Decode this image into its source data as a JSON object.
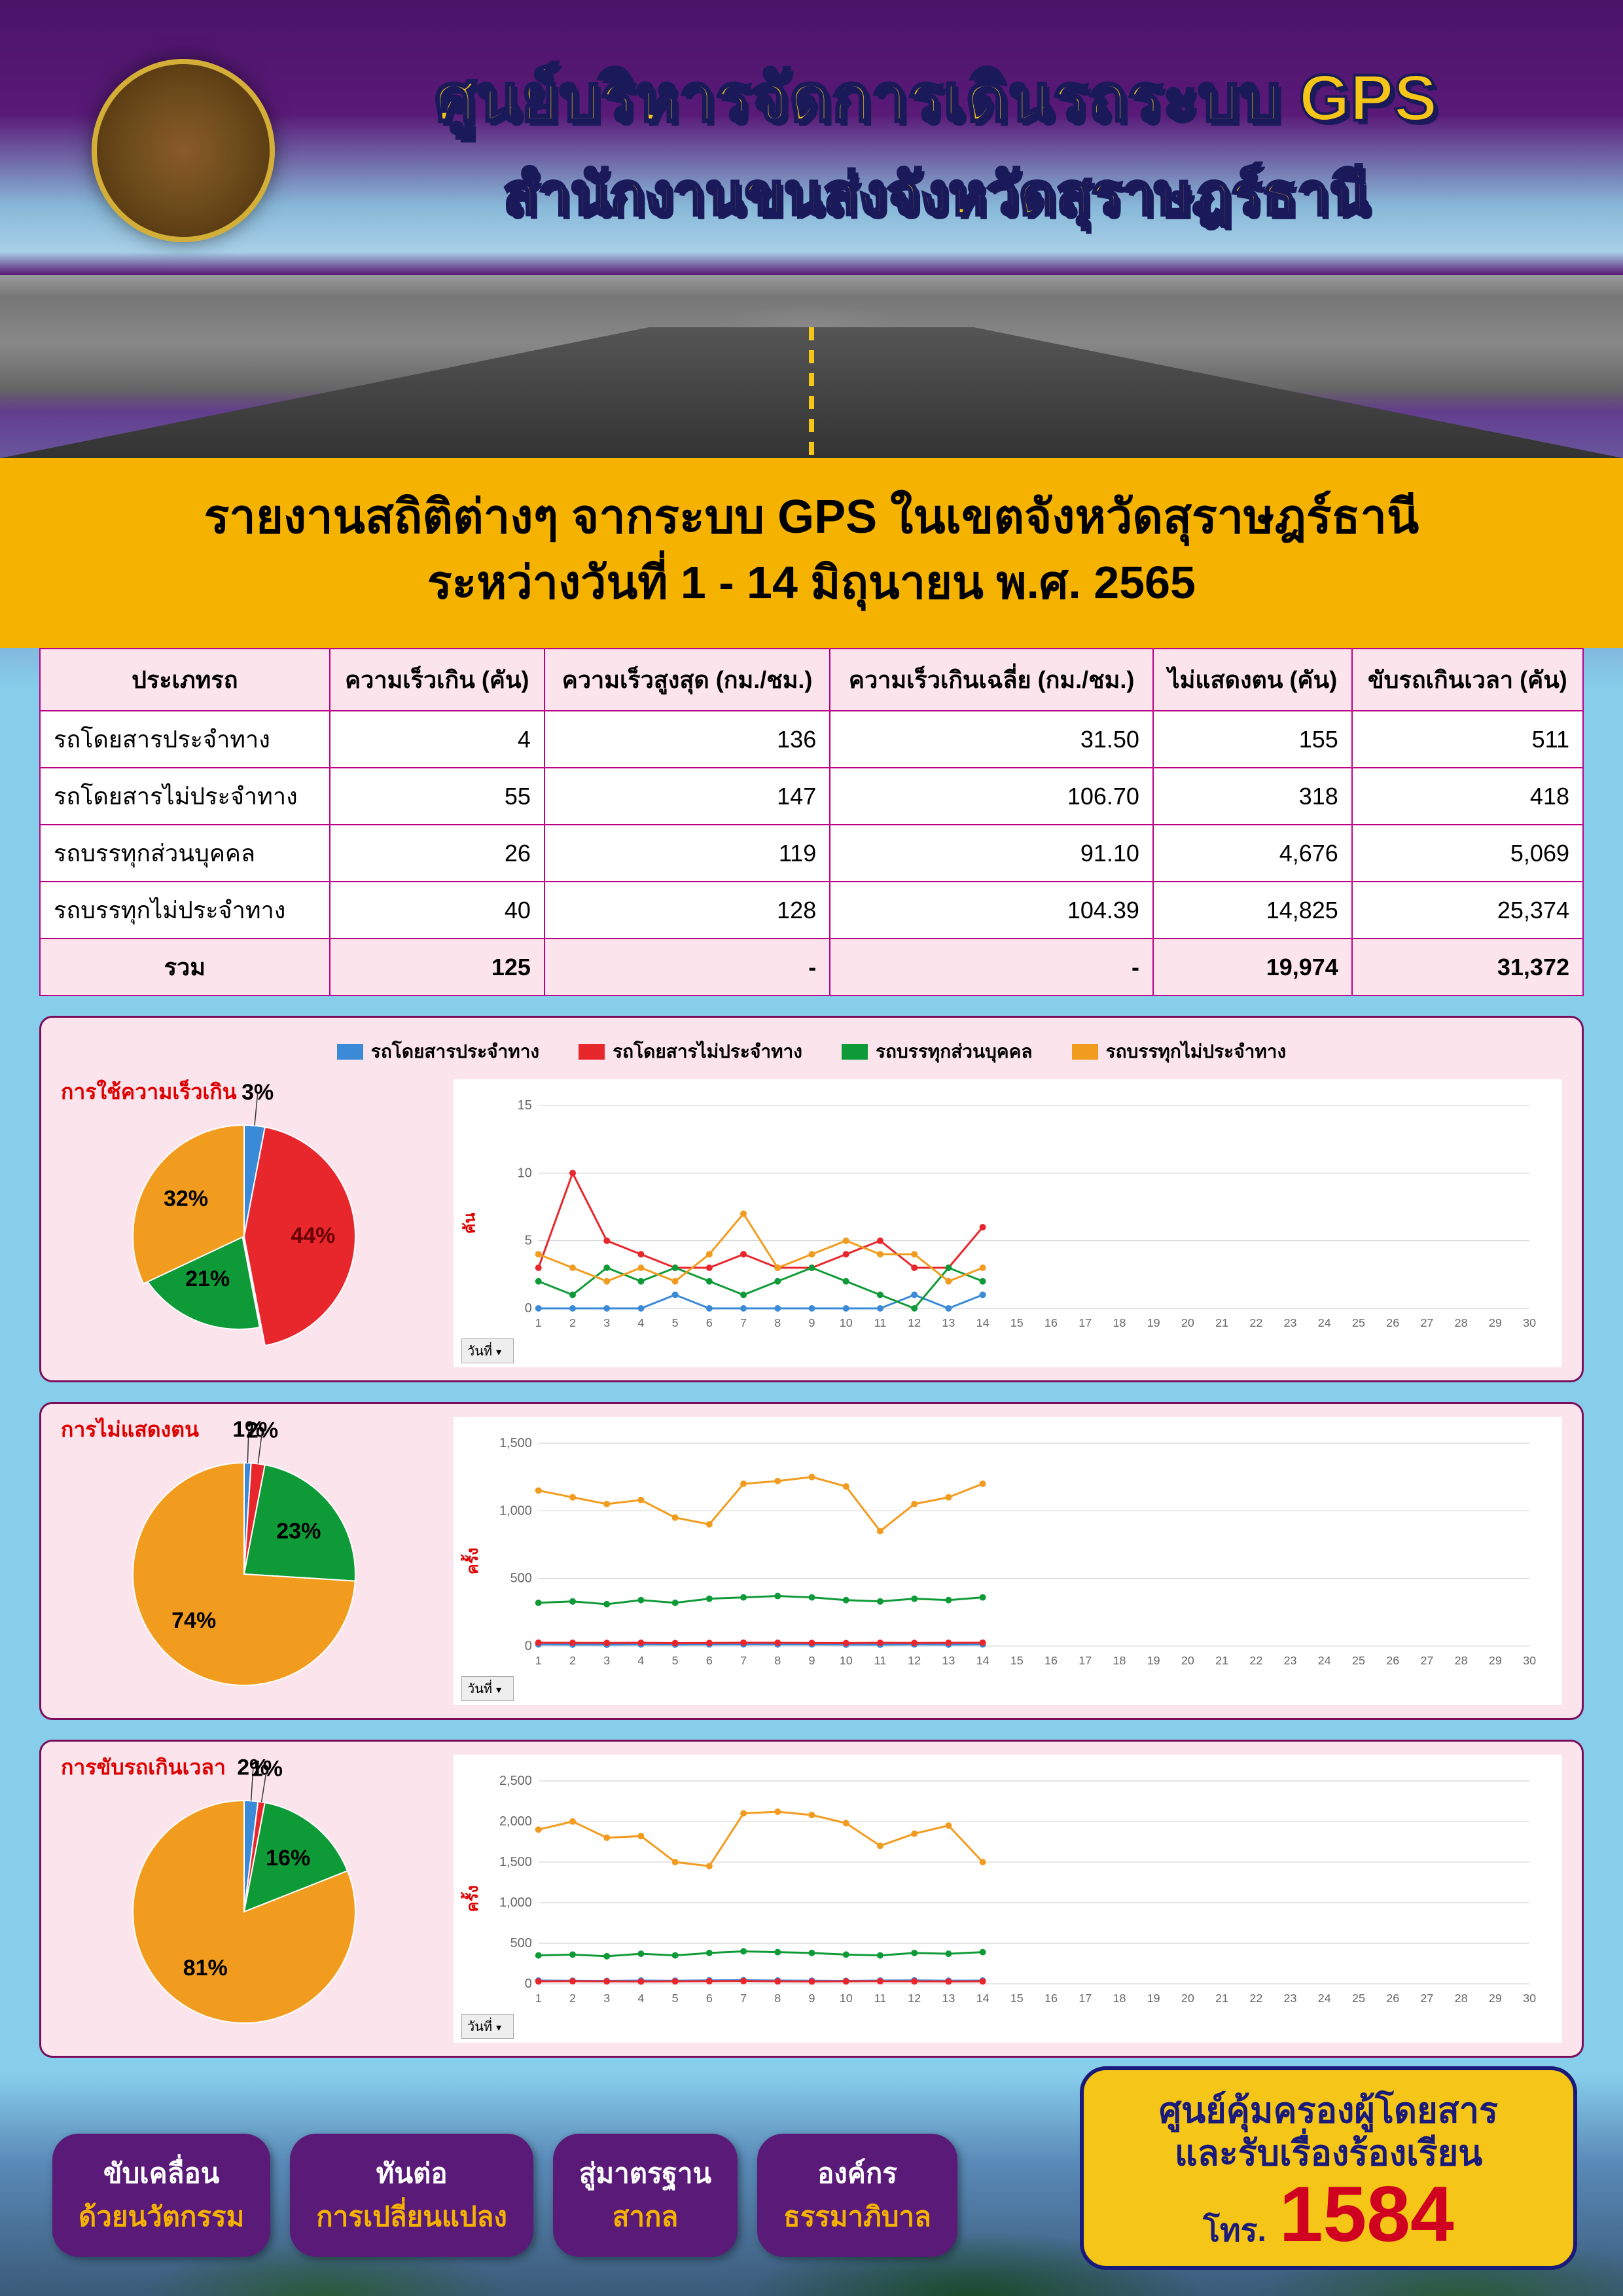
{
  "header": {
    "title": "ศูนย์บริหารจัดการเดินรถระบบ GPS",
    "subtitle": "สำนักงานขนส่งจังหวัดสุราษฎร์ธานี"
  },
  "band": {
    "line1": "รายงานสถิติต่างๆ จากระบบ GPS ในเขตจังหวัดสุราษฎร์ธานี",
    "line2": "ระหว่างวันที่ 1 - 14 มิถุนายน พ.ศ. 2565"
  },
  "colors": {
    "series1": "#3b8ad8",
    "series2": "#e8272c",
    "series3": "#0f9a38",
    "series4": "#f29c1f",
    "panel_bg": "#fce4ec",
    "panel_border": "#7a0d5a",
    "purple": "#5a1a78",
    "yellow": "#f5b300",
    "navy": "#1a1a7a",
    "hotred": "#d00020"
  },
  "legend": {
    "items": [
      {
        "label": "รถโดยสารประจำทาง",
        "color": "#3b8ad8"
      },
      {
        "label": "รถโดยสารไม่ประจำทาง",
        "color": "#e8272c"
      },
      {
        "label": "รถบรรทุกส่วนบุคคล",
        "color": "#0f9a38"
      },
      {
        "label": "รถบรรทุกไม่ประจำทาง",
        "color": "#f29c1f"
      }
    ]
  },
  "table": {
    "columns": [
      "ประเภทรถ",
      "ความเร็วเกิน (คัน)",
      "ความเร็วสูงสุด (กม./ชม.)",
      "ความเร็วเกินเฉลี่ย (กม./ชม.)",
      "ไม่แสดงตน (คัน)",
      "ขับรถเกินเวลา (คัน)"
    ],
    "rows": [
      [
        "รถโดยสารประจำทาง",
        "4",
        "136",
        "31.50",
        "155",
        "511"
      ],
      [
        "รถโดยสารไม่ประจำทาง",
        "55",
        "147",
        "106.70",
        "318",
        "418"
      ],
      [
        "รถบรรทุกส่วนบุคคล",
        "26",
        "119",
        "91.10",
        "4,676",
        "5,069"
      ],
      [
        "รถบรรทุกไม่ประจำทาง",
        "40",
        "128",
        "104.39",
        "14,825",
        "25,374"
      ]
    ],
    "total": {
      "label": "รวม",
      "cells": [
        "125",
        "-",
        "-",
        "19,974",
        "31,372"
      ]
    }
  },
  "charts": {
    "x_categories": [
      1,
      2,
      3,
      4,
      5,
      6,
      7,
      8,
      9,
      10,
      11,
      12,
      13,
      14,
      15,
      16,
      17,
      18,
      19,
      20,
      21,
      22,
      23,
      24,
      25,
      26,
      27,
      28,
      29,
      30
    ],
    "x_dropdown_label": "วันที่",
    "panel1": {
      "title": "การใช้ความเร็วเกิน",
      "y_title": "คัน",
      "pie": {
        "slices": [
          {
            "pct": 3,
            "label": "3%",
            "color": "#3b8ad8"
          },
          {
            "pct": 44,
            "label": "44%",
            "color": "#e8272c"
          },
          {
            "pct": 21,
            "label": "21%",
            "color": "#0f9a38"
          },
          {
            "pct": 32,
            "label": "32%",
            "color": "#f29c1f"
          }
        ],
        "offsets": [
          {
            "slice": 2,
            "dx": -8,
            "dy": -28
          }
        ]
      },
      "line": {
        "ylim": [
          0,
          15
        ],
        "ytick_step": 5,
        "series": [
          {
            "color": "#3b8ad8",
            "data": [
              0,
              0,
              0,
              0,
              1,
              0,
              0,
              0,
              0,
              0,
              0,
              1,
              0,
              1
            ]
          },
          {
            "color": "#e8272c",
            "data": [
              3,
              10,
              5,
              4,
              3,
              3,
              4,
              3,
              3,
              4,
              5,
              3,
              3,
              6
            ]
          },
          {
            "color": "#0f9a38",
            "data": [
              2,
              1,
              3,
              2,
              3,
              2,
              1,
              2,
              3,
              2,
              1,
              0,
              3,
              2
            ]
          },
          {
            "color": "#f29c1f",
            "data": [
              4,
              3,
              2,
              3,
              2,
              4,
              7,
              3,
              4,
              5,
              4,
              4,
              2,
              3
            ]
          }
        ]
      }
    },
    "panel2": {
      "title": "การไม่แสดงตน",
      "y_title": "ครั้ง",
      "pie": {
        "slices": [
          {
            "pct": 1,
            "label": "1%",
            "color": "#3b8ad8"
          },
          {
            "pct": 2,
            "label": "2%",
            "color": "#e8272c"
          },
          {
            "pct": 23,
            "label": "23%",
            "color": "#0f9a38"
          },
          {
            "pct": 74,
            "label": "74%",
            "color": "#f29c1f"
          }
        ]
      },
      "line": {
        "ylim": [
          0,
          1500
        ],
        "ytick_step": 500,
        "series": [
          {
            "color": "#3b8ad8",
            "data": [
              12,
              11,
              10,
              12,
              11,
              12,
              13,
              12,
              12,
              11,
              10,
              12,
              11,
              12
            ]
          },
          {
            "color": "#e8272c",
            "data": [
              25,
              24,
              23,
              24,
              22,
              23,
              25,
              24,
              23,
              22,
              24,
              23,
              24,
              25
            ]
          },
          {
            "color": "#0f9a38",
            "data": [
              320,
              330,
              310,
              340,
              320,
              350,
              360,
              370,
              360,
              340,
              330,
              350,
              340,
              360
            ]
          },
          {
            "color": "#f29c1f",
            "data": [
              1150,
              1100,
              1050,
              1080,
              950,
              900,
              1200,
              1220,
              1250,
              1180,
              850,
              1050,
              1100,
              1200
            ]
          }
        ]
      }
    },
    "panel3": {
      "title": "การขับรถเกินเวลา",
      "y_title": "ครั้ง",
      "pie": {
        "slices": [
          {
            "pct": 2,
            "label": "2%",
            "color": "#3b8ad8"
          },
          {
            "pct": 1,
            "label": "1%",
            "color": "#e8272c"
          },
          {
            "pct": 16,
            "label": "16%",
            "color": "#0f9a38"
          },
          {
            "pct": 81,
            "label": "81%",
            "color": "#f29c1f"
          }
        ]
      },
      "line": {
        "ylim": [
          0,
          2500
        ],
        "ytick_step": 500,
        "series": [
          {
            "color": "#3b8ad8",
            "data": [
              40,
              38,
              36,
              40,
              38,
              42,
              44,
              40,
              38,
              36,
              40,
              42,
              38,
              40
            ]
          },
          {
            "color": "#e8272c",
            "data": [
              30,
              32,
              30,
              28,
              30,
              32,
              34,
              30,
              28,
              30,
              32,
              30,
              28,
              30
            ]
          },
          {
            "color": "#0f9a38",
            "data": [
              350,
              360,
              340,
              370,
              350,
              380,
              400,
              390,
              380,
              360,
              350,
              380,
              370,
              390
            ]
          },
          {
            "color": "#f29c1f",
            "data": [
              1900,
              2000,
              1800,
              1820,
              1500,
              1450,
              2100,
              2120,
              2080,
              1980,
              1700,
              1850,
              1950,
              1500
            ]
          }
        ]
      }
    }
  },
  "footer": {
    "pills": [
      {
        "p1": "ขับเคลื่อน",
        "p2": "ด้วยนวัตกรรม"
      },
      {
        "p1": "ทันต่อ",
        "p2": "การเปลี่ยนแปลง"
      },
      {
        "p1": "สู่มาตรฐาน",
        "p2": "สากล"
      },
      {
        "p1": "องค์กร",
        "p2": "ธรรมาภิบาล"
      }
    ],
    "hotline": {
      "h1": "ศูนย์คุ้มครองผู้โดยสาร",
      "h2": "และรับเรื่องร้องเรียน",
      "tel_label": "โทร.",
      "tel_number": "1584"
    }
  }
}
